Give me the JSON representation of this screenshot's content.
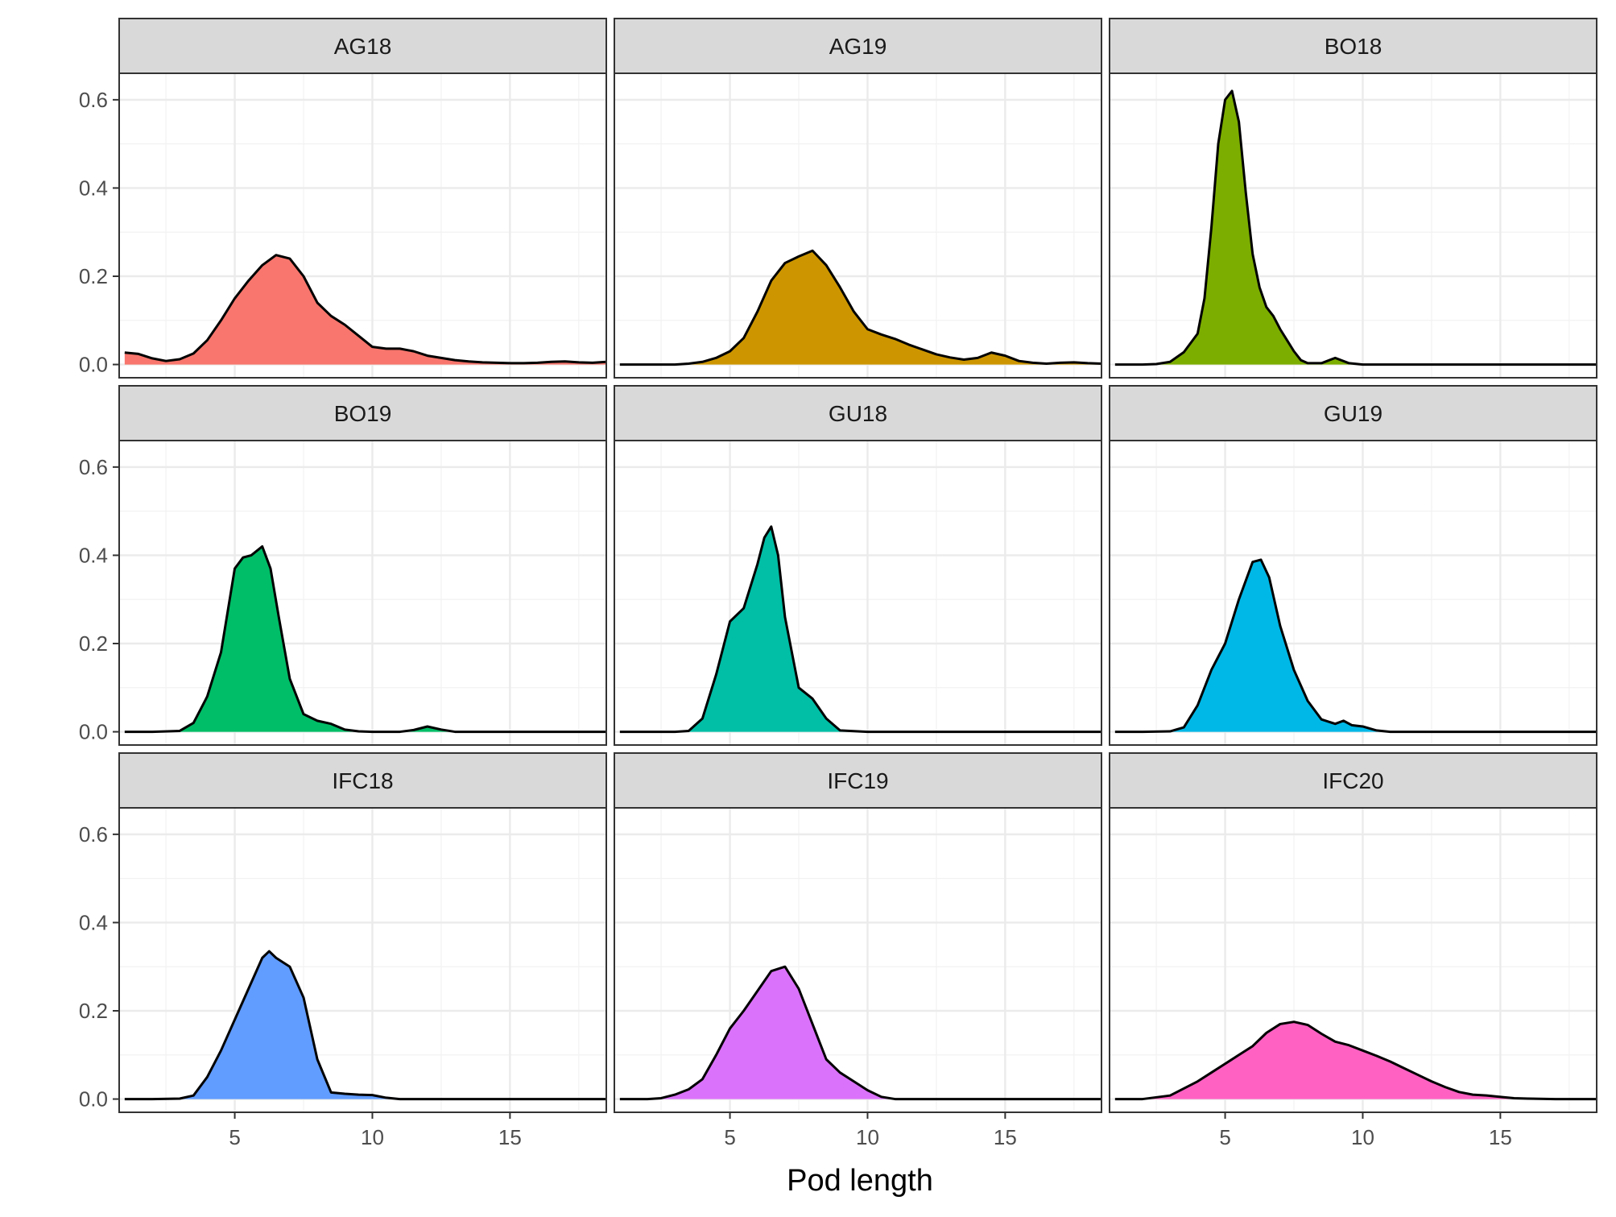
{
  "chart_data": {
    "type": "area",
    "xlabel": "Pod length",
    "ylabel": "",
    "xlim": [
      0.8,
      18.5
    ],
    "ylim": [
      -0.03,
      0.66
    ],
    "x_ticks": [
      5,
      10,
      15
    ],
    "x_tick_labels": [
      "5",
      "10",
      "15"
    ],
    "y_ticks": [
      0.0,
      0.2,
      0.4,
      0.6
    ],
    "y_tick_labels": [
      "0.0",
      "0.2",
      "0.4",
      "0.6"
    ],
    "grid": true,
    "legend": "none",
    "facets": [
      {
        "name": "AG18",
        "color": "#F8766D",
        "x": [
          1.0,
          1.5,
          2.0,
          2.5,
          3.0,
          3.5,
          4.0,
          4.5,
          5.0,
          5.5,
          6.0,
          6.5,
          7.0,
          7.5,
          8.0,
          8.5,
          9.0,
          9.5,
          10.0,
          10.5,
          11.0,
          11.5,
          12.0,
          12.5,
          13.0,
          13.5,
          14.0,
          14.5,
          15.0,
          15.5,
          16.0,
          16.5,
          17.0,
          17.5,
          18.0,
          18.5
        ],
        "y": [
          0.027,
          0.024,
          0.014,
          0.008,
          0.012,
          0.025,
          0.055,
          0.1,
          0.15,
          0.19,
          0.225,
          0.248,
          0.24,
          0.2,
          0.14,
          0.11,
          0.09,
          0.065,
          0.04,
          0.036,
          0.036,
          0.03,
          0.02,
          0.015,
          0.01,
          0.007,
          0.005,
          0.004,
          0.003,
          0.003,
          0.004,
          0.006,
          0.007,
          0.005,
          0.004,
          0.006
        ]
      },
      {
        "name": "AG19",
        "color": "#CD9600",
        "x": [
          1.0,
          2.0,
          3.0,
          3.5,
          4.0,
          4.5,
          5.0,
          5.5,
          6.0,
          6.5,
          7.0,
          7.5,
          8.0,
          8.5,
          9.0,
          9.5,
          10.0,
          10.5,
          11.0,
          11.5,
          12.0,
          12.5,
          13.0,
          13.5,
          14.0,
          14.5,
          15.0,
          15.5,
          16.0,
          16.5,
          17.0,
          17.5,
          18.0,
          18.5
        ],
        "y": [
          0.0,
          0.0,
          0.0,
          0.002,
          0.006,
          0.015,
          0.03,
          0.06,
          0.12,
          0.19,
          0.23,
          0.245,
          0.258,
          0.225,
          0.175,
          0.12,
          0.08,
          0.068,
          0.058,
          0.045,
          0.034,
          0.023,
          0.016,
          0.011,
          0.015,
          0.027,
          0.02,
          0.008,
          0.004,
          0.002,
          0.004,
          0.005,
          0.003,
          0.002
        ]
      },
      {
        "name": "BO18",
        "color": "#7CAE00",
        "x": [
          1.0,
          2.0,
          2.5,
          3.0,
          3.5,
          4.0,
          4.25,
          4.5,
          4.75,
          5.0,
          5.25,
          5.5,
          5.75,
          6.0,
          6.25,
          6.5,
          6.75,
          7.0,
          7.25,
          7.5,
          7.75,
          8.0,
          8.5,
          9.0,
          9.5,
          10.0,
          12.0,
          14.0,
          16.0,
          18.5
        ],
        "y": [
          0.0,
          0.0,
          0.001,
          0.006,
          0.028,
          0.07,
          0.15,
          0.31,
          0.5,
          0.6,
          0.62,
          0.55,
          0.39,
          0.25,
          0.175,
          0.13,
          0.11,
          0.08,
          0.055,
          0.03,
          0.01,
          0.003,
          0.003,
          0.015,
          0.003,
          0.0,
          0.0,
          0.0,
          0.0,
          0.0
        ]
      },
      {
        "name": "BO19",
        "color": "#00BE67",
        "x": [
          1.0,
          2.0,
          3.0,
          3.5,
          4.0,
          4.5,
          5.0,
          5.3,
          5.6,
          6.0,
          6.3,
          6.6,
          7.0,
          7.5,
          8.0,
          8.5,
          9.0,
          9.5,
          10.0,
          11.0,
          11.5,
          12.0,
          12.5,
          13.0,
          14.0,
          16.0,
          18.5
        ],
        "y": [
          0.0,
          0.0,
          0.002,
          0.02,
          0.08,
          0.18,
          0.37,
          0.395,
          0.4,
          0.42,
          0.37,
          0.26,
          0.12,
          0.04,
          0.025,
          0.018,
          0.005,
          0.001,
          0.0,
          0.0,
          0.004,
          0.012,
          0.005,
          0.0,
          0.0,
          0.0,
          0.0
        ]
      },
      {
        "name": "GU18",
        "color": "#00BFA6",
        "x": [
          1.0,
          2.0,
          3.0,
          3.5,
          4.0,
          4.5,
          5.0,
          5.5,
          6.0,
          6.25,
          6.5,
          6.75,
          7.0,
          7.5,
          8.0,
          8.5,
          9.0,
          10.0,
          12.0,
          14.0,
          16.0,
          18.5
        ],
        "y": [
          0.0,
          0.0,
          0.0,
          0.002,
          0.03,
          0.13,
          0.25,
          0.28,
          0.38,
          0.44,
          0.465,
          0.4,
          0.26,
          0.1,
          0.075,
          0.03,
          0.003,
          0.0,
          0.0,
          0.0,
          0.0,
          0.0
        ]
      },
      {
        "name": "GU19",
        "color": "#00B8E7",
        "x": [
          1.0,
          2.0,
          3.0,
          3.5,
          4.0,
          4.5,
          5.0,
          5.5,
          6.0,
          6.3,
          6.6,
          7.0,
          7.5,
          8.0,
          8.5,
          9.0,
          9.3,
          9.6,
          10.0,
          10.5,
          11.0,
          12.0,
          14.0,
          16.0,
          18.5
        ],
        "y": [
          0.0,
          0.0,
          0.001,
          0.01,
          0.06,
          0.14,
          0.2,
          0.3,
          0.385,
          0.39,
          0.35,
          0.24,
          0.14,
          0.07,
          0.028,
          0.018,
          0.025,
          0.015,
          0.012,
          0.003,
          0.0,
          0.0,
          0.0,
          0.0,
          0.0
        ]
      },
      {
        "name": "IFC18",
        "color": "#619CFF",
        "x": [
          1.0,
          2.0,
          3.0,
          3.5,
          4.0,
          4.5,
          5.0,
          5.5,
          6.0,
          6.25,
          6.5,
          7.0,
          7.5,
          8.0,
          8.5,
          9.0,
          9.5,
          10.0,
          10.5,
          11.0,
          12.0,
          14.0,
          16.0,
          18.5
        ],
        "y": [
          0.0,
          0.0,
          0.001,
          0.008,
          0.05,
          0.11,
          0.18,
          0.25,
          0.32,
          0.335,
          0.32,
          0.3,
          0.23,
          0.09,
          0.015,
          0.012,
          0.01,
          0.009,
          0.003,
          0.0,
          0.0,
          0.0,
          0.0,
          0.0
        ]
      },
      {
        "name": "IFC19",
        "color": "#DB72FB",
        "x": [
          1.0,
          2.0,
          2.5,
          3.0,
          3.5,
          4.0,
          4.5,
          5.0,
          5.5,
          6.0,
          6.5,
          7.0,
          7.5,
          8.0,
          8.5,
          9.0,
          9.5,
          10.0,
          10.5,
          11.0,
          12.0,
          14.0,
          16.0,
          18.5
        ],
        "y": [
          0.0,
          0.0,
          0.002,
          0.01,
          0.022,
          0.045,
          0.1,
          0.16,
          0.2,
          0.245,
          0.29,
          0.3,
          0.25,
          0.17,
          0.09,
          0.06,
          0.04,
          0.02,
          0.005,
          0.0,
          0.0,
          0.0,
          0.0,
          0.0
        ]
      },
      {
        "name": "IFC20",
        "color": "#FF61C3",
        "x": [
          1.0,
          2.0,
          3.0,
          4.0,
          4.5,
          5.0,
          5.5,
          6.0,
          6.5,
          7.0,
          7.5,
          8.0,
          8.5,
          9.0,
          9.5,
          10.0,
          10.5,
          11.0,
          11.5,
          12.0,
          12.5,
          13.0,
          13.5,
          14.0,
          14.5,
          15.0,
          15.5,
          16.0,
          17.0,
          18.5
        ],
        "y": [
          0.0,
          0.0,
          0.008,
          0.04,
          0.06,
          0.08,
          0.1,
          0.12,
          0.15,
          0.17,
          0.175,
          0.168,
          0.148,
          0.13,
          0.122,
          0.11,
          0.098,
          0.085,
          0.07,
          0.055,
          0.04,
          0.027,
          0.016,
          0.01,
          0.008,
          0.005,
          0.002,
          0.001,
          0.0,
          0.0
        ]
      }
    ]
  }
}
